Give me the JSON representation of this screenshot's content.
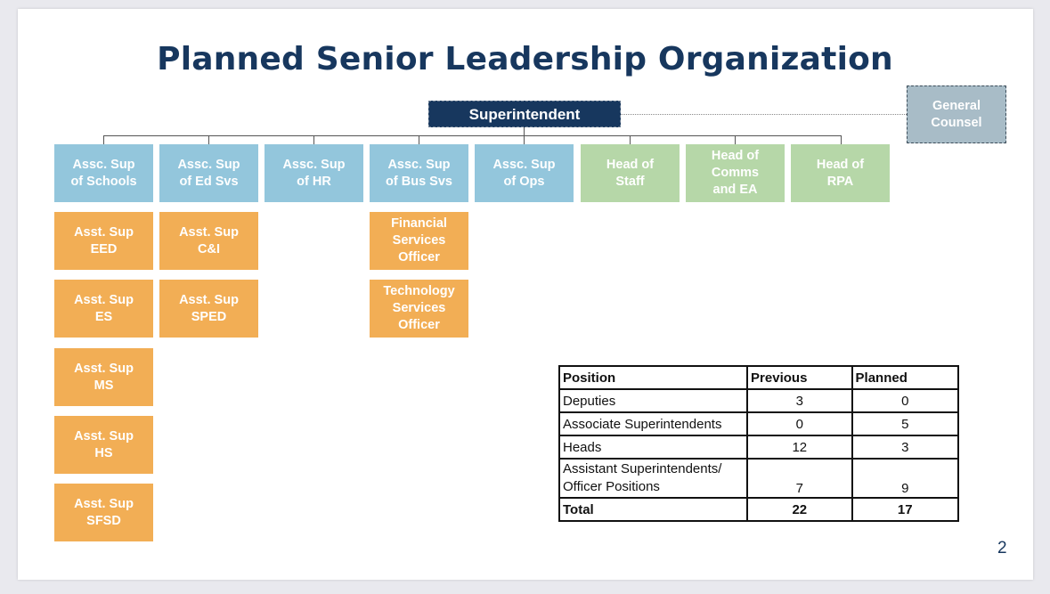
{
  "slide": {
    "title": "Planned Senior Leadership Organization",
    "page_number": "2"
  },
  "org_chart": {
    "top": "Superintendent",
    "advisor": "General\nCounsel",
    "associates": [
      {
        "label": "Assc. Sup\nof Schools",
        "type": "associate"
      },
      {
        "label": "Assc. Sup\nof Ed Svs",
        "type": "associate"
      },
      {
        "label": "Assc. Sup\nof HR",
        "type": "associate"
      },
      {
        "label": "Assc. Sup\nof Bus Svs",
        "type": "associate"
      },
      {
        "label": "Assc. Sup\nof Ops",
        "type": "associate"
      },
      {
        "label": "Head of\nStaff",
        "type": "head"
      },
      {
        "label": "Head of\nComms\nand EA",
        "type": "head"
      },
      {
        "label": "Head of\nRPA",
        "type": "head"
      }
    ],
    "schools_reports": [
      "Asst. Sup\nEED",
      "Asst. Sup\nES",
      "Asst. Sup\nMS",
      "Asst. Sup\nHS",
      "Asst. Sup\nSFSD"
    ],
    "ed_svs_reports": [
      "Asst. Sup\nC&I",
      "Asst. Sup\nSPED"
    ],
    "bus_svs_reports": [
      "Financial\nServices\nOfficer",
      "Technology\nServices\nOfficer"
    ],
    "colors": {
      "associate": "#93c6dc",
      "head": "#b6d7a8",
      "assistant": "#f2ae55",
      "superintendent": "#17375e",
      "counsel": "#a8bcc7"
    }
  },
  "table": {
    "headers": [
      "Position",
      "Previous",
      "Planned"
    ],
    "rows": [
      {
        "position": "Deputies",
        "previous": "3",
        "planned": "0"
      },
      {
        "position": "Associate Superintendents",
        "previous": "0",
        "planned": "5"
      },
      {
        "position": "Heads",
        "previous": "12",
        "planned": "3"
      },
      {
        "position": "Assistant Superintendents/\nOfficer Positions",
        "previous": "7",
        "planned": "9"
      }
    ],
    "total": {
      "position": "Total",
      "previous": "22",
      "planned": "17"
    }
  }
}
